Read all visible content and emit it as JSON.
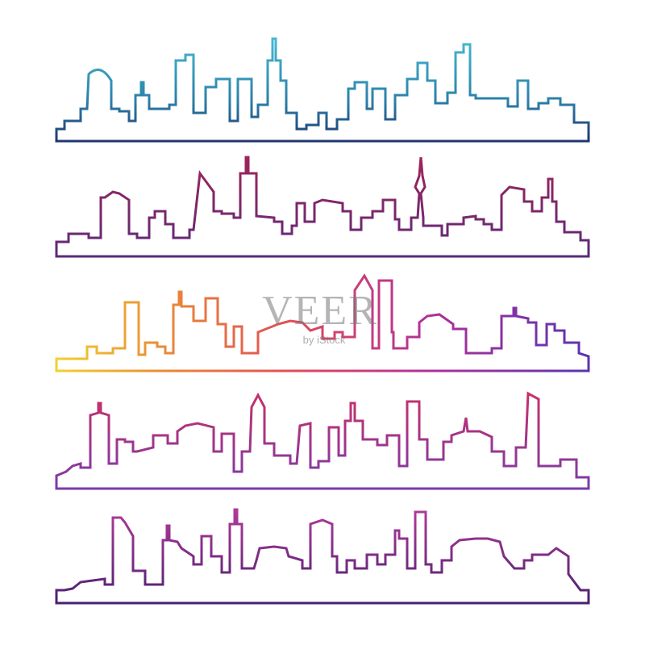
{
  "watermark": {
    "brand": "VEER",
    "tagline": "by iStock"
  }
}
